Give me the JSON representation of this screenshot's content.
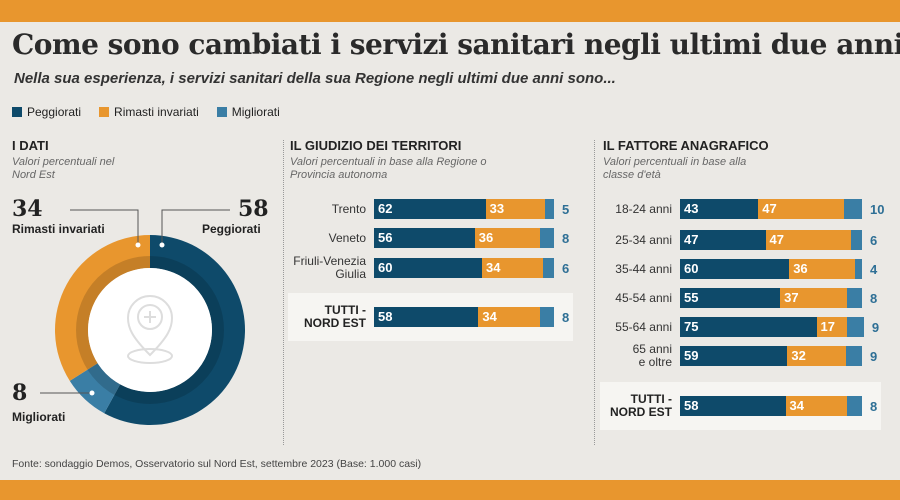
{
  "title": "Come sono cambiati i servizi sanitari negli ultimi due anni",
  "subtitle": "Nella sua esperienza, i servizi sanitari della sua Regione negli ultimi due anni sono...",
  "colors": {
    "peggiorati": "#0e4a6a",
    "invariati": "#e8962e",
    "migliorati": "#3a7ea5",
    "background": "#ebe9e5"
  },
  "legend": [
    "Peggiorati",
    "Rimasti invariati",
    "Migliorati"
  ],
  "source": "Fonte: sondaggio Demos, Osservatorio sul Nord Est, settembre 2023 (Base: 1.000 casi)",
  "center_icon": "map-pin-medical-cross-icon",
  "chart_data": [
    {
      "type": "pie",
      "title": "I DATI",
      "subtitle": "Valori percentuali nel Nord Est",
      "slices": [
        {
          "name": "Peggiorati",
          "value": 58
        },
        {
          "name": "Migliorati",
          "value": 8
        },
        {
          "name": "Rimasti invariati",
          "value": 34
        }
      ]
    },
    {
      "type": "bar",
      "stacked": true,
      "orientation": "horizontal",
      "title": "IL GIUDIZIO DEI TERRITORI",
      "subtitle": "Valori percentuali in base alla Regione o Provincia autonoma",
      "categories": [
        "Trento",
        "Veneto",
        "Friuli-Venezia Giulia",
        "TUTTI - NORD EST"
      ],
      "series": [
        {
          "name": "Peggiorati",
          "values": [
            62,
            56,
            60,
            58
          ]
        },
        {
          "name": "Rimasti invariati",
          "values": [
            33,
            36,
            34,
            34
          ]
        },
        {
          "name": "Migliorati",
          "values": [
            5,
            8,
            6,
            8
          ]
        }
      ]
    },
    {
      "type": "bar",
      "stacked": true,
      "orientation": "horizontal",
      "title": "IL FATTORE ANAGRAFICO",
      "subtitle": "Valori percentuali in base alla classe d'età",
      "categories": [
        "18-24 anni",
        "25-34 anni",
        "35-44 anni",
        "45-54 anni",
        "55-64 anni",
        "65 anni e oltre",
        "TUTTI - NORD EST"
      ],
      "series": [
        {
          "name": "Peggiorati",
          "values": [
            43,
            47,
            60,
            55,
            75,
            59,
            58
          ]
        },
        {
          "name": "Rimasti invariati",
          "values": [
            47,
            47,
            36,
            37,
            17,
            32,
            34
          ]
        },
        {
          "name": "Migliorati",
          "values": [
            10,
            6,
            4,
            8,
            9,
            9,
            8
          ]
        }
      ]
    }
  ]
}
